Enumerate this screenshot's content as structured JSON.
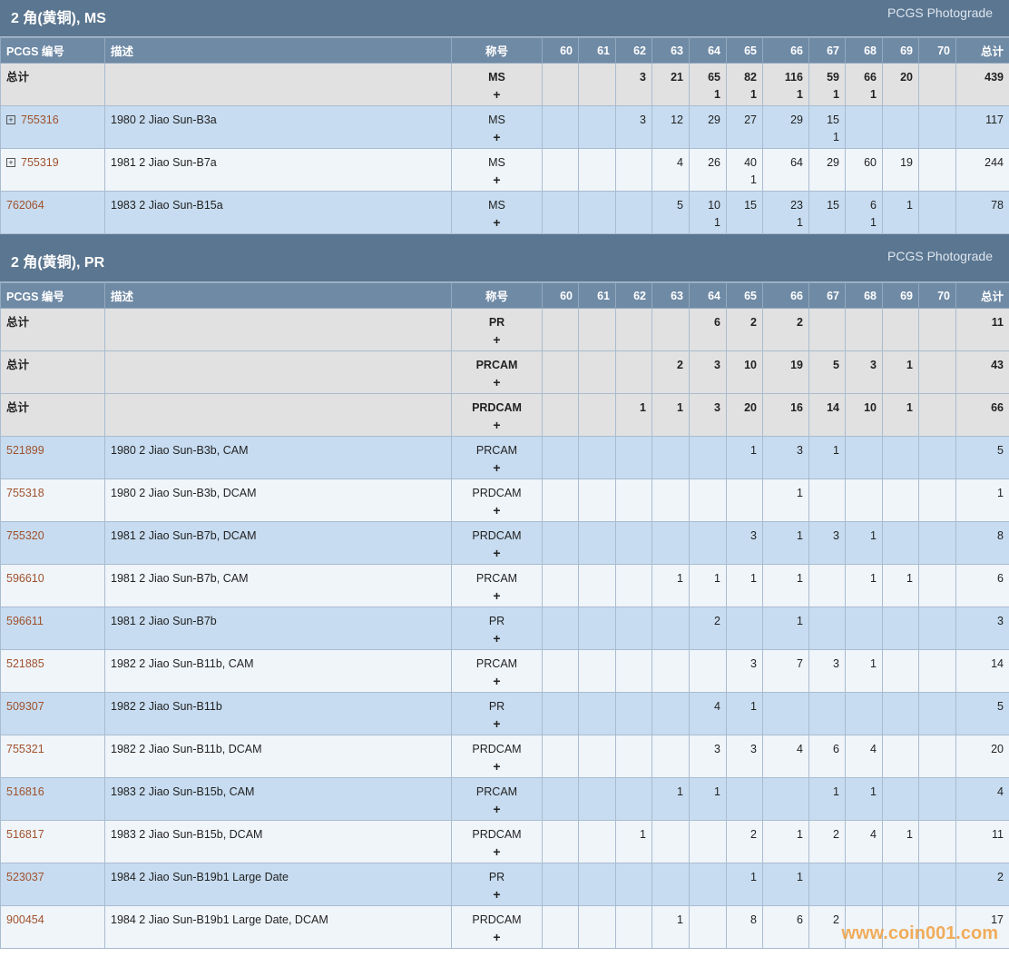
{
  "sections": [
    {
      "title": "2 角(黄铜), MS",
      "link": "PCGS Photograde",
      "headers": [
        "PCGS 编号",
        "描述",
        "称号",
        "60",
        "61",
        "62",
        "63",
        "64",
        "65",
        "66",
        "67",
        "68",
        "69",
        "70",
        "总计"
      ],
      "rows": [
        {
          "pcgs": "总计",
          "desc": null,
          "designation": "MS",
          "plus_mark": "+",
          "total_row": true,
          "grades": [
            null,
            null,
            [
              3
            ],
            [
              21
            ],
            [
              65,
              1
            ],
            [
              82,
              1
            ],
            [
              116,
              1
            ],
            [
              59,
              1
            ],
            [
              66,
              1
            ],
            [
              20
            ],
            null
          ],
          "total": 439
        },
        {
          "pcgs": "755316",
          "desc": "1980 2 Jiao Sun-B3a",
          "designation": "MS",
          "plus_mark": "+",
          "expandable": true,
          "grades": [
            null,
            null,
            [
              3
            ],
            [
              12
            ],
            [
              29
            ],
            [
              27
            ],
            [
              29
            ],
            [
              15,
              1
            ],
            null,
            null,
            null
          ],
          "total": 117
        },
        {
          "pcgs": "755319",
          "desc": "1981 2 Jiao Sun-B7a",
          "designation": "MS",
          "plus_mark": "+",
          "expandable": true,
          "grades": [
            null,
            null,
            null,
            [
              4
            ],
            [
              26
            ],
            [
              40,
              1
            ],
            [
              64
            ],
            [
              29
            ],
            [
              60
            ],
            [
              19
            ],
            null
          ],
          "total": 244
        },
        {
          "pcgs": "762064",
          "desc": "1983 2 Jiao Sun-B15a",
          "designation": "MS",
          "plus_mark": "+",
          "grades": [
            null,
            null,
            null,
            [
              5
            ],
            [
              10,
              1
            ],
            [
              15
            ],
            [
              23,
              1
            ],
            [
              15
            ],
            [
              6,
              1
            ],
            [
              1
            ],
            null
          ],
          "total": 78
        }
      ]
    },
    {
      "title": "2 角(黄铜), PR",
      "link": "PCGS Photograde",
      "headers": [
        "PCGS 编号",
        "描述",
        "称号",
        "60",
        "61",
        "62",
        "63",
        "64",
        "65",
        "66",
        "67",
        "68",
        "69",
        "70",
        "总计"
      ],
      "rows": [
        {
          "pcgs": "总计",
          "desc": null,
          "designation": "PR",
          "plus_mark": "+",
          "total_row": true,
          "grades": [
            null,
            null,
            null,
            null,
            [
              6
            ],
            [
              2
            ],
            [
              2
            ],
            null,
            null,
            null,
            null
          ],
          "total": 11
        },
        {
          "pcgs": "总计",
          "desc": null,
          "designation": "PRCAM",
          "plus_mark": "+",
          "total_row": true,
          "grades": [
            null,
            null,
            null,
            [
              2
            ],
            [
              3
            ],
            [
              10
            ],
            [
              19
            ],
            [
              5
            ],
            [
              3
            ],
            [
              1
            ],
            null
          ],
          "total": 43
        },
        {
          "pcgs": "总计",
          "desc": null,
          "designation": "PRDCAM",
          "plus_mark": "+",
          "total_row": true,
          "grades": [
            null,
            null,
            [
              1
            ],
            [
              1
            ],
            [
              3
            ],
            [
              20
            ],
            [
              16
            ],
            [
              14
            ],
            [
              10
            ],
            [
              1
            ],
            null
          ],
          "total": 66
        },
        {
          "pcgs": "521899",
          "desc": "1980 2 Jiao Sun-B3b, CAM",
          "designation": "PRCAM",
          "plus_mark": "+",
          "grades": [
            null,
            null,
            null,
            null,
            null,
            [
              1
            ],
            [
              3
            ],
            [
              1
            ],
            null,
            null,
            null
          ],
          "total": 5
        },
        {
          "pcgs": "755318",
          "desc": "1980 2 Jiao Sun-B3b, DCAM",
          "designation": "PRDCAM",
          "plus_mark": "+",
          "grades": [
            null,
            null,
            null,
            null,
            null,
            null,
            [
              1
            ],
            null,
            null,
            null,
            null
          ],
          "total": 1
        },
        {
          "pcgs": "755320",
          "desc": "1981 2 Jiao Sun-B7b, DCAM",
          "designation": "PRDCAM",
          "plus_mark": "+",
          "grades": [
            null,
            null,
            null,
            null,
            null,
            [
              3
            ],
            [
              1
            ],
            [
              3
            ],
            [
              1
            ],
            null,
            null
          ],
          "total": 8
        },
        {
          "pcgs": "596610",
          "desc": "1981 2 Jiao Sun-B7b, CAM",
          "designation": "PRCAM",
          "plus_mark": "+",
          "grades": [
            null,
            null,
            null,
            [
              1
            ],
            [
              1
            ],
            [
              1
            ],
            [
              1
            ],
            null,
            [
              1
            ],
            [
              1
            ],
            null
          ],
          "total": 6
        },
        {
          "pcgs": "596611",
          "desc": "1981 2 Jiao Sun-B7b",
          "designation": "PR",
          "plus_mark": "+",
          "grades": [
            null,
            null,
            null,
            null,
            [
              2
            ],
            null,
            [
              1
            ],
            null,
            null,
            null,
            null
          ],
          "total": 3
        },
        {
          "pcgs": "521885",
          "desc": "1982 2 Jiao Sun-B11b, CAM",
          "designation": "PRCAM",
          "plus_mark": "+",
          "grades": [
            null,
            null,
            null,
            null,
            null,
            [
              3
            ],
            [
              7
            ],
            [
              3
            ],
            [
              1
            ],
            null,
            null
          ],
          "total": 14
        },
        {
          "pcgs": "509307",
          "desc": "1982 2 Jiao Sun-B11b",
          "designation": "PR",
          "plus_mark": "+",
          "grades": [
            null,
            null,
            null,
            null,
            [
              4
            ],
            [
              1
            ],
            null,
            null,
            null,
            null,
            null
          ],
          "total": 5
        },
        {
          "pcgs": "755321",
          "desc": "1982 2 Jiao Sun-B11b, DCAM",
          "designation": "PRDCAM",
          "plus_mark": "+",
          "grades": [
            null,
            null,
            null,
            null,
            [
              3
            ],
            [
              3
            ],
            [
              4
            ],
            [
              6
            ],
            [
              4
            ],
            null,
            null
          ],
          "total": 20
        },
        {
          "pcgs": "516816",
          "desc": "1983 2 Jiao Sun-B15b, CAM",
          "designation": "PRCAM",
          "plus_mark": "+",
          "grades": [
            null,
            null,
            null,
            [
              1
            ],
            [
              1
            ],
            null,
            null,
            [
              1
            ],
            [
              1
            ],
            null,
            null
          ],
          "total": 4
        },
        {
          "pcgs": "516817",
          "desc": "1983 2 Jiao Sun-B15b, DCAM",
          "designation": "PRDCAM",
          "plus_mark": "+",
          "grades": [
            null,
            null,
            [
              1
            ],
            null,
            null,
            [
              2
            ],
            [
              1
            ],
            [
              2
            ],
            [
              4
            ],
            [
              1
            ],
            null
          ],
          "total": 11
        },
        {
          "pcgs": "523037",
          "desc": "1984 2 Jiao Sun-B19b1 Large Date",
          "designation": "PR",
          "plus_mark": "+",
          "grades": [
            null,
            null,
            null,
            null,
            null,
            [
              1
            ],
            [
              1
            ],
            null,
            null,
            null,
            null
          ],
          "total": 2
        },
        {
          "pcgs": "900454",
          "desc": "1984 2 Jiao Sun-B19b1 Large Date, DCAM",
          "designation": "PRDCAM",
          "plus_mark": "+",
          "grades": [
            null,
            null,
            null,
            [
              1
            ],
            null,
            [
              8
            ],
            [
              6
            ],
            [
              2
            ],
            null,
            null,
            null
          ],
          "total": 17
        }
      ]
    }
  ],
  "watermark": "www.coin001.com"
}
